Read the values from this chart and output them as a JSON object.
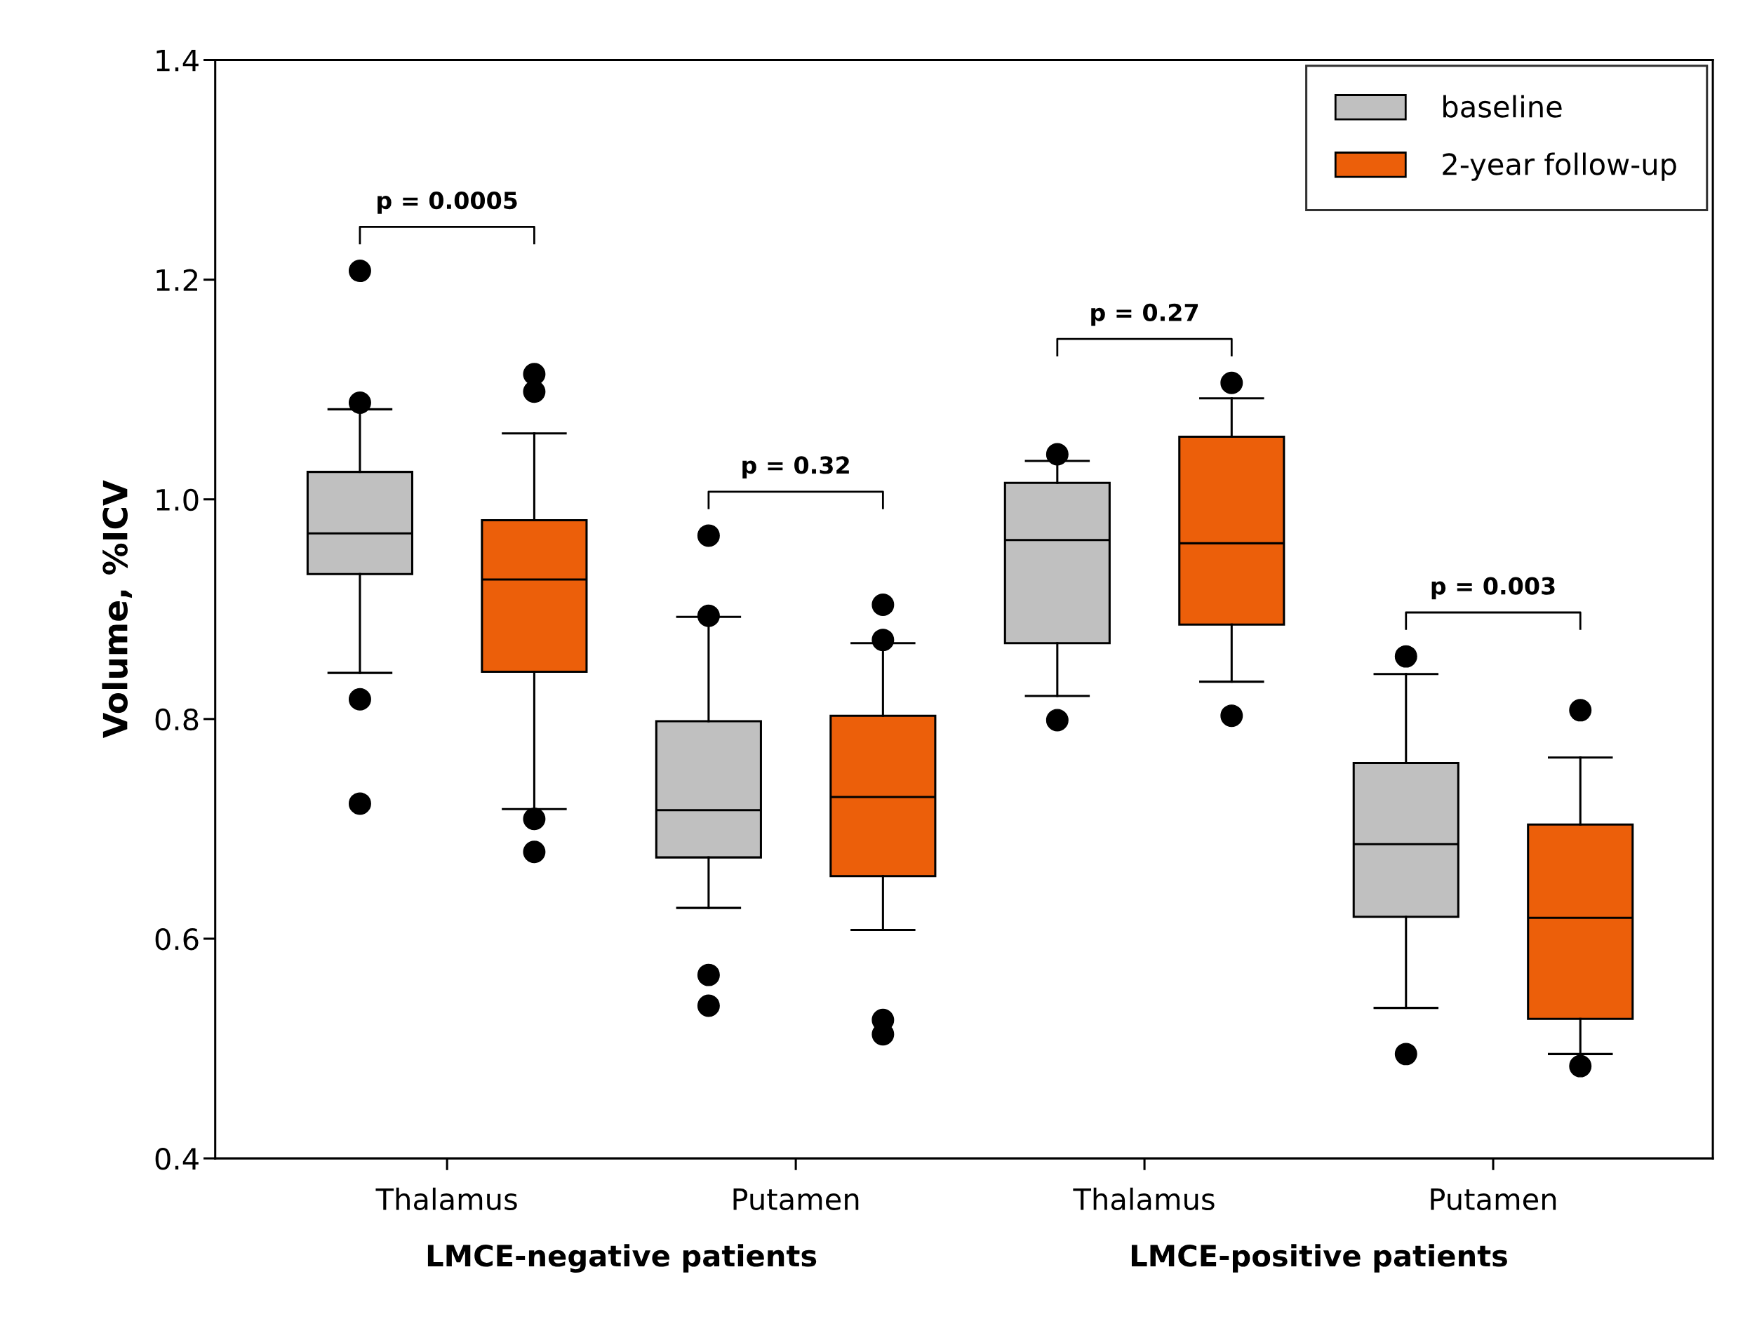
{
  "chart_data": {
    "type": "box",
    "ylabel": "Volume, %ICV",
    "categories": [
      "Thalamus",
      "Putamen",
      "Thalamus",
      "Putamen"
    ],
    "ylim": [
      0.4,
      1.4
    ],
    "yticks": [
      0.4,
      0.6,
      0.8,
      {
        "value": 1.0,
        "label": "1.0"
      },
      1.2,
      1.4
    ],
    "grid": false,
    "legend": "top right",
    "marker": "circle",
    "series": [
      {
        "name": "baseline",
        "color": "#c0c0c0",
        "boxes": [
          {
            "low": 0.842,
            "q1": 0.932,
            "median": 0.969,
            "q3": 1.025,
            "high": 1.082,
            "outliers": [
              1.208,
              1.088,
              0.818,
              0.723
            ]
          },
          {
            "low": 0.628,
            "q1": 0.674,
            "median": 0.717,
            "q3": 0.798,
            "high": 0.893,
            "outliers": [
              0.967,
              0.894,
              0.567,
              0.539
            ]
          },
          {
            "low": 0.821,
            "q1": 0.869,
            "median": 0.963,
            "q3": 1.015,
            "high": 1.035,
            "outliers": [
              1.041,
              0.799
            ]
          },
          {
            "low": 0.537,
            "q1": 0.62,
            "median": 0.686,
            "q3": 0.76,
            "high": 0.841,
            "outliers": [
              0.857,
              0.495
            ]
          }
        ]
      },
      {
        "name": "2-year follow-up",
        "color": "#ec5f0a",
        "boxes": [
          {
            "low": 0.718,
            "q1": 0.843,
            "median": 0.927,
            "q3": 0.981,
            "high": 1.06,
            "outliers": [
              1.114,
              1.098,
              0.709,
              0.679
            ]
          },
          {
            "low": 0.608,
            "q1": 0.657,
            "median": 0.729,
            "q3": 0.803,
            "high": 0.869,
            "outliers": [
              0.904,
              0.872,
              0.526,
              0.513
            ]
          },
          {
            "low": 0.834,
            "q1": 0.886,
            "median": 0.96,
            "q3": 1.057,
            "high": 1.092,
            "outliers": [
              1.106,
              0.803
            ]
          },
          {
            "low": 0.495,
            "q1": 0.527,
            "median": 0.619,
            "q3": 0.704,
            "high": 0.765,
            "outliers": [
              0.808,
              0.484
            ]
          }
        ]
      }
    ],
    "annotations": [
      "p = 0.0005",
      "p = 0.32",
      "p = 0.27",
      "p = 0.003",
      "LMCE-negative patients",
      "LMCE-positive patients"
    ]
  }
}
